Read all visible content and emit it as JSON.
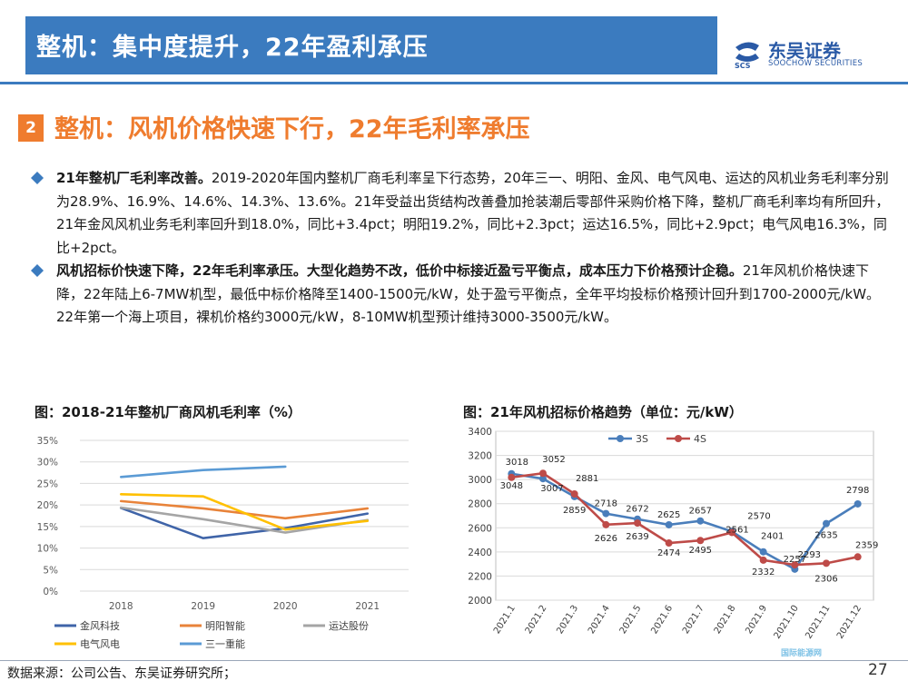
{
  "header": {
    "title": "整机：集中度提升，22年盈利承压",
    "logo_cn": "东吴证券",
    "logo_en": "SOOCHOW SECURITIES",
    "logo_abbr": "SCS",
    "brand_color": "#3b7bbf"
  },
  "section": {
    "number": "2",
    "title": "整机：风机价格快速下行，22年毛利率承压",
    "accent_color": "#ef7c2e"
  },
  "paragraphs": [
    {
      "bold": "21年整机厂毛利率改善。",
      "text": "2019-2020年国内整机厂商毛利率呈下行态势，20年三一、明阳、金风、电气风电、运达的风机业务毛利率分别为28.9%、16.9%、14.6%、14.3%、13.6%。21年受益出货结构改善叠加抢装潮后零部件采购价格下降，整机厂商毛利率均有所回升，21年金风风机业务毛利率回升到18.0%，同比+3.4pct；明阳19.2%，同比+2.3pct；运达16.5%，同比+2.9pct；电气风电16.3%，同比+2pct。"
    },
    {
      "bold": "风机招标价快速下降，22年毛利率承压。大型化趋势不改，低价中标接近盈亏平衡点，成本压力下价格预计企稳。",
      "text": "21年风机价格快速下降，22年陆上6-7MW机型，最低中标价格降至1400-1500元/kW，处于盈亏平衡点，全年平均投标价格预计回升到1700-2000元/kW。22年第一个海上项目，裸机价格约3000元/kW，8-10MW机型预计维持3000-3500元/kW。"
    }
  ],
  "chart_data": [
    {
      "type": "line",
      "title": "图：2018-21年整机厂商风机毛利率（%）",
      "categories": [
        "2018",
        "2019",
        "2020",
        "2021"
      ],
      "y_ticks": [
        "0%",
        "5%",
        "10%",
        "15%",
        "20%",
        "25%",
        "30%",
        "35%"
      ],
      "ylim": [
        0,
        35
      ],
      "grid": true,
      "legend_position": "bottom",
      "series": [
        {
          "name": "金风科技",
          "color": "#3f64a8",
          "values": [
            19.3,
            12.3,
            14.6,
            18.0
          ]
        },
        {
          "name": "明阳智能",
          "color": "#e8833a",
          "values": [
            20.9,
            19.2,
            16.9,
            19.2
          ]
        },
        {
          "name": "运达股份",
          "color": "#a5a5a5",
          "values": [
            19.4,
            16.7,
            13.6,
            16.5
          ]
        },
        {
          "name": "电气风电",
          "color": "#ffc000",
          "values": [
            22.5,
            22.0,
            14.3,
            16.3
          ]
        },
        {
          "name": "三一重能",
          "color": "#5b9bd5",
          "values": [
            26.5,
            28.1,
            28.9,
            null
          ]
        }
      ]
    },
    {
      "type": "line",
      "title": "图：21年风机招标价格趋势（单位：元/kW）",
      "categories": [
        "2021.1",
        "2021.2",
        "2021.3",
        "2021.4",
        "2021.5",
        "2021.6",
        "2021.7",
        "2021.8",
        "2021.9",
        "2021.10",
        "2021.11",
        "2021.12"
      ],
      "y_ticks": [
        "2000",
        "2200",
        "2400",
        "2600",
        "2800",
        "3000",
        "3200",
        "3400"
      ],
      "ylim": [
        2000,
        3400
      ],
      "grid": true,
      "legend_position": "top",
      "series": [
        {
          "name": "3S",
          "color": "#4a7ebb",
          "values": [
            3048,
            3007,
            2859,
            2718,
            2672,
            2625,
            2657,
            2570,
            2401,
            2257,
            2635,
            2798
          ]
        },
        {
          "name": "4S",
          "color": "#be4b48",
          "values": [
            3018,
            3052,
            2881,
            2626,
            2639,
            2474,
            2495,
            2561,
            2332,
            2293,
            2306,
            2359
          ]
        }
      ]
    }
  ],
  "footer": {
    "source": "数据来源：公司公告、东吴证券研究所；",
    "page_number": "27",
    "watermark": "国际能源网"
  }
}
